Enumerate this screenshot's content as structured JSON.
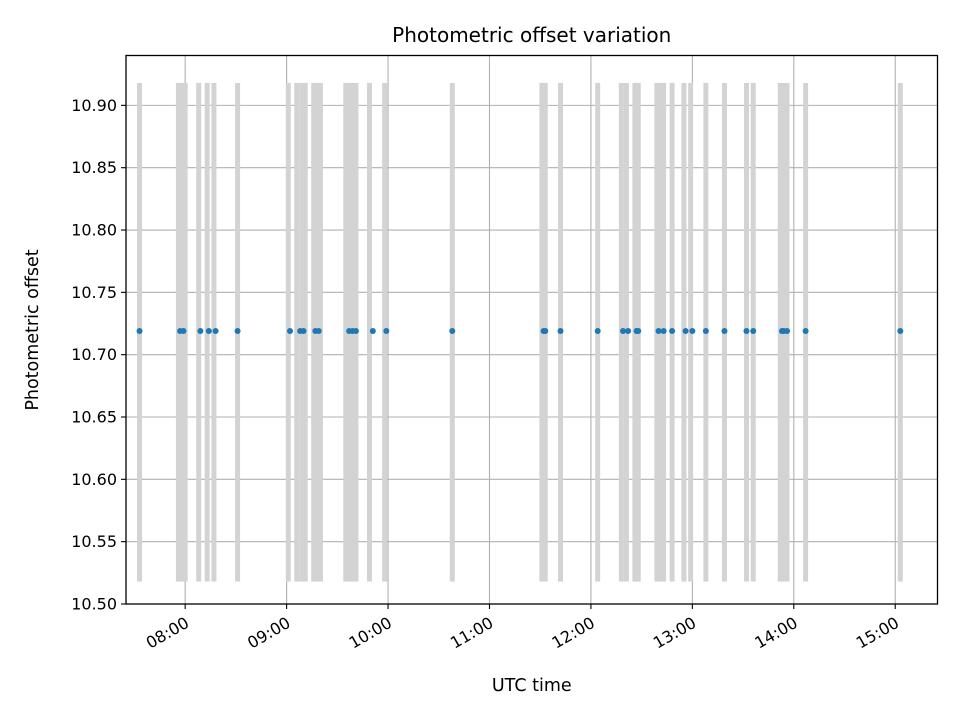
{
  "chart_data": {
    "type": "scatter",
    "title": "Photometric offset variation",
    "xlabel": "UTC time",
    "ylabel": "Photometric offset",
    "xlim": [
      "07:25",
      "15:25"
    ],
    "ylim": [
      10.5,
      10.94
    ],
    "x_ticks": [
      "08:00",
      "09:00",
      "10:00",
      "11:00",
      "12:00",
      "13:00",
      "14:00",
      "15:00"
    ],
    "y_ticks": [
      "10.50",
      "10.55",
      "10.60",
      "10.65",
      "10.70",
      "10.75",
      "10.80",
      "10.85",
      "10.90"
    ],
    "grid": true,
    "colors": {
      "points": "#1f77b4",
      "bands": "#d3d3d3",
      "grid": "#b0b0b0"
    },
    "series": [
      {
        "x": [
          "07:33",
          "07:57",
          "07:59",
          "08:09",
          "08:14",
          "08:18",
          "08:31",
          "09:02",
          "09:08",
          "09:10",
          "09:17",
          "09:19",
          "09:37",
          "09:39",
          "09:41",
          "09:51",
          "09:59",
          "10:38",
          "11:32",
          "11:33",
          "11:42",
          "12:04",
          "12:19",
          "12:22",
          "12:27",
          "12:28",
          "12:40",
          "12:43",
          "12:48",
          "12:56",
          "13:00",
          "13:08",
          "13:19",
          "13:32",
          "13:36",
          "13:53",
          "13:54",
          "13:56",
          "14:07",
          "15:03"
        ],
        "y": [
          10.719,
          10.719,
          10.719,
          10.719,
          10.719,
          10.719,
          10.719,
          10.719,
          10.719,
          10.719,
          10.719,
          10.719,
          10.719,
          10.719,
          10.719,
          10.719,
          10.719,
          10.719,
          10.719,
          10.719,
          10.719,
          10.719,
          10.719,
          10.719,
          10.719,
          10.719,
          10.719,
          10.719,
          10.719,
          10.719,
          10.719,
          10.719,
          10.719,
          10.719,
          10.719,
          10.719,
          10.719,
          10.719,
          10.719,
          10.719
        ]
      }
    ],
    "bands": {
      "y_range": [
        10.518,
        10.918
      ],
      "times": [
        "07:33",
        "07:56",
        "07:58",
        "08:00",
        "08:08",
        "08:13",
        "08:17",
        "08:31",
        "09:01",
        "09:06",
        "09:09",
        "09:11",
        "09:16",
        "09:18",
        "09:20",
        "09:35",
        "09:37",
        "09:39",
        "09:41",
        "09:49",
        "09:58",
        "10:38",
        "11:31",
        "11:33",
        "11:42",
        "12:04",
        "12:18",
        "12:21",
        "12:26",
        "12:28",
        "12:39",
        "12:41",
        "12:43",
        "12:48",
        "12:55",
        "12:59",
        "13:08",
        "13:19",
        "13:32",
        "13:36",
        "13:52",
        "13:54",
        "13:56",
        "14:07",
        "15:03"
      ]
    }
  }
}
